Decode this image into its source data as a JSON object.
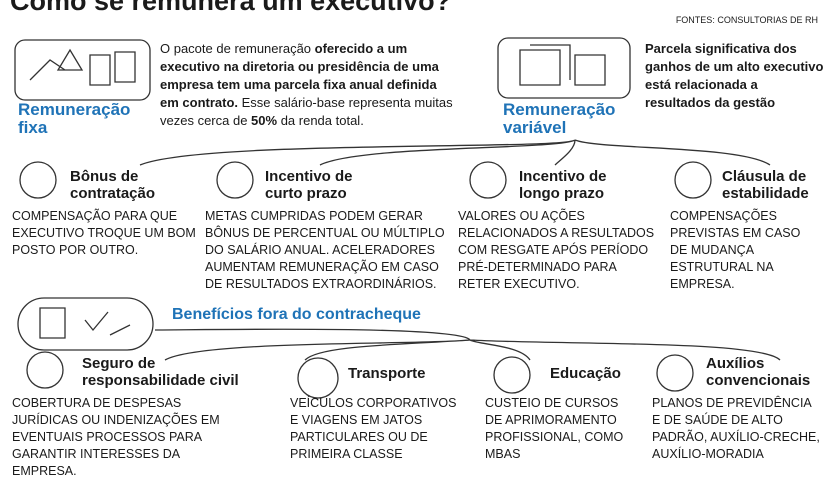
{
  "header": {
    "title": "Como se remunera um executivo?",
    "source": "FONTES: CONSULTORIAS DE RH"
  },
  "fixed": {
    "label": "Remuneração fixa",
    "text": [
      "O pacote de remuneração ",
      "oferecido a um executivo na diretoria ou presidência de uma empresa tem uma parcela fixa anual definida em contrato.",
      " Esse salário-base representa muitas vezes cerca de ",
      "50%",
      " da renda total."
    ]
  },
  "variable": {
    "label": "Remuneração variável",
    "text": "Parcela significativa dos ganhos de um alto executivo está relacionada a resultados da gestão",
    "items": [
      {
        "title": "Bônus de contratação",
        "text": "COMPENSAÇÃO PARA QUE EXECUTIVO TROQUE UM BOM POSTO POR OUTRO."
      },
      {
        "title": "Incentivo de curto prazo",
        "text": "METAS CUMPRIDAS PODEM GERAR BÔNUS DE PERCENTUAL OU MÚLTIPLO DO SALÁRIO ANUAL. ACELERADORES AUMENTAM REMUNERAÇÃO EM CASO DE RESULTADOS EXTRAORDINÁRIOS."
      },
      {
        "title": "Incentivo de longo prazo",
        "text": "VALORES OU AÇÕES RELACIONADOS A RESULTADOS COM RESGATE APÓS PERÍODO PRÉ-DETERMINADO PARA RETER EXECUTIVO."
      },
      {
        "title": "Cláusula de estabilidade",
        "text": "COMPENSAÇÕES PREVISTAS EM CASO DE MUDANÇA ESTRUTURAL NA EMPRESA."
      }
    ]
  },
  "benefits": {
    "label": "Benefícios fora do contracheque",
    "items": [
      {
        "title": "Seguro de responsabilidade civil",
        "text": "COBERTURA DE DESPESAS JURÍDICAS OU INDENIZAÇÕES EM EVENTUAIS PROCESSOS PARA GARANTIR INTERESSES DA EMPRESA."
      },
      {
        "title": "Transporte",
        "text": "VEÍCULOS CORPORATIVOS E VIAGENS EM JATOS PARTICULARES OU DE PRIMEIRA CLASSE"
      },
      {
        "title": "Educação",
        "text": "CUSTEIO DE CURSOS DE APRIMORAMENTO PROFISSIONAL, COMO MBAS"
      },
      {
        "title": "Auxílios convencionais",
        "text": "PLANOS DE PREVIDÊNCIA E DE SAÚDE DE ALTO PADRÃO, AUXÍLIO-CRECHE, AUXÍLIO-MORADIA"
      }
    ]
  }
}
